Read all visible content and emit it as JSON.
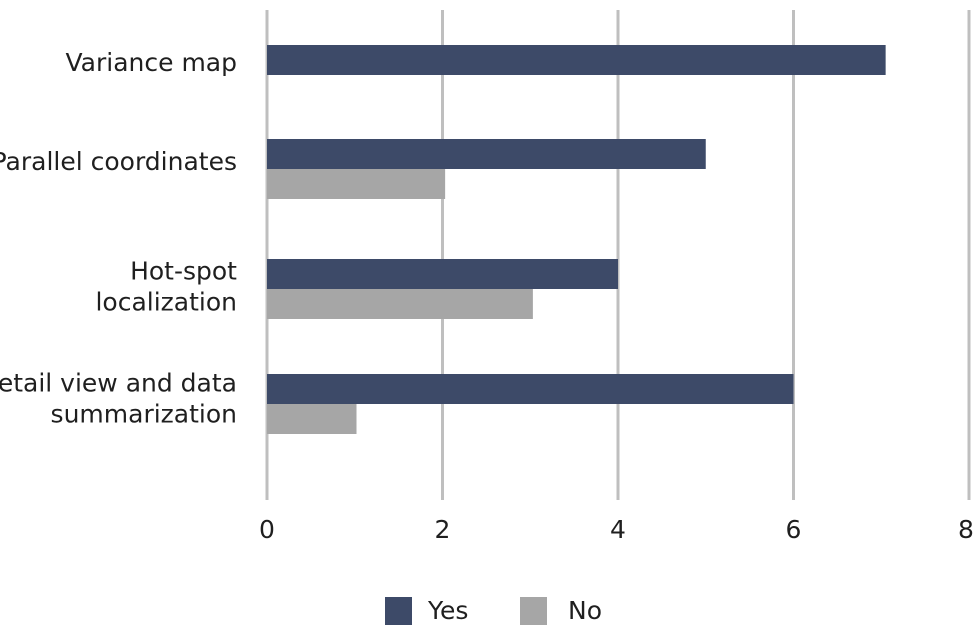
{
  "chart_data": {
    "type": "bar",
    "orientation": "horizontal",
    "categories": [
      [
        "Variance map"
      ],
      [
        "Parallel coordinates"
      ],
      [
        "Hot-spot",
        "localization"
      ],
      [
        "Detail view and data",
        "summarization"
      ]
    ],
    "series": [
      {
        "name": "Yes",
        "color": "#3d4a68",
        "values": [
          7.05,
          5,
          4,
          6
        ]
      },
      {
        "name": "No",
        "color": "#a6a6a6",
        "values": [
          0,
          2.03,
          3.03,
          1.02
        ]
      }
    ],
    "xlim": [
      0,
      8
    ],
    "xticks": [
      0,
      2,
      4,
      6,
      8
    ],
    "grid": "vertical",
    "legend": "bottom-center",
    "title": "",
    "xlabel": "",
    "ylabel": ""
  }
}
